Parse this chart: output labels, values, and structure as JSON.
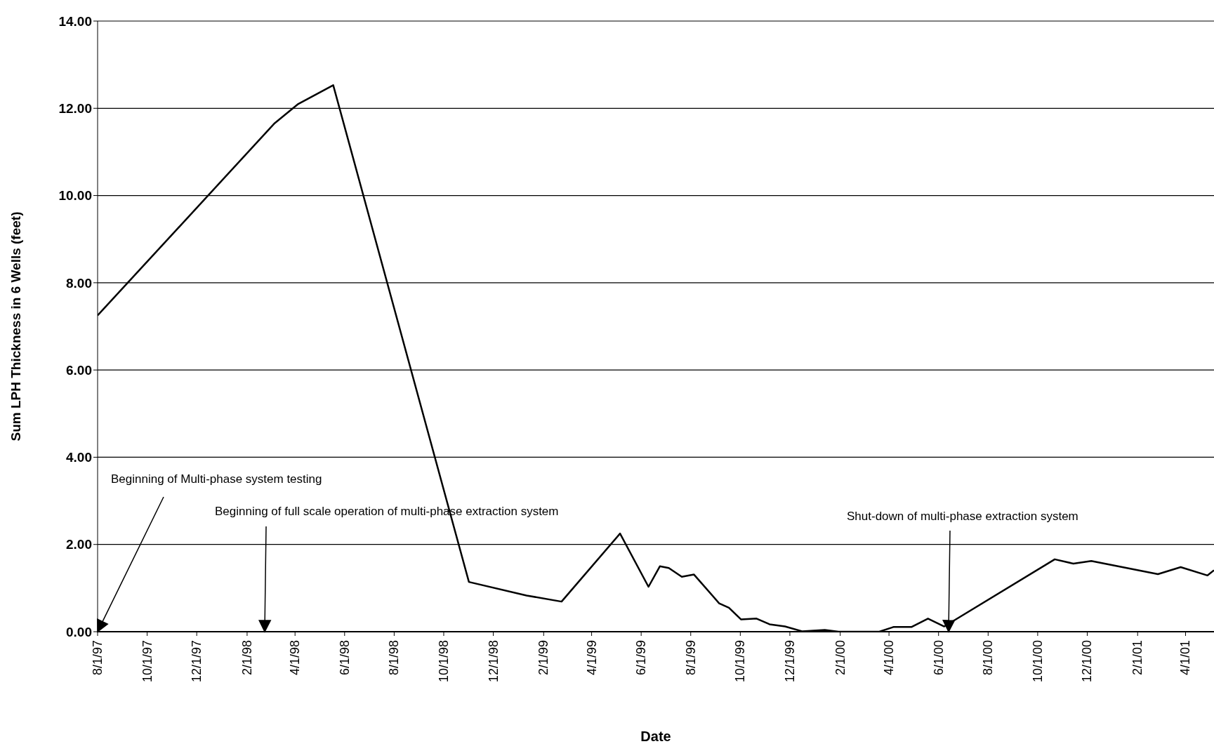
{
  "chart_data": {
    "type": "line",
    "xlabel": "Date",
    "ylabel": "Sum LPH Thickness in 6 Wells (feet)",
    "x": [
      "1997-08-01",
      "1998-03-07",
      "1998-04-05",
      "1998-05-18",
      "1998-11-01",
      "1999-01-11",
      "1999-02-23",
      "1999-05-06",
      "1999-06-10",
      "1999-06-24",
      "1999-07-05",
      "1999-07-21",
      "1999-08-05",
      "1999-09-05",
      "1999-09-17",
      "1999-10-02",
      "1999-10-21",
      "1999-11-06",
      "1999-11-25",
      "1999-12-16",
      "2000-01-13",
      "2000-01-30",
      "2000-03-20",
      "2000-04-07",
      "2000-04-29",
      "2000-05-19",
      "2000-06-08",
      "2000-10-22",
      "2000-11-14",
      "2000-12-06",
      "2001-02-26",
      "2001-03-26",
      "2001-04-28",
      "2001-05-06"
    ],
    "series": [
      {
        "color": "#000000",
        "values": [
          7.25,
          11.66,
          12.1,
          12.53,
          1.14,
          0.83,
          0.69,
          2.25,
          1.03,
          1.5,
          1.46,
          1.26,
          1.31,
          0.65,
          0.55,
          0.28,
          0.3,
          0.17,
          0.12,
          0.01,
          0.04,
          0,
          0,
          0.11,
          0.11,
          0.3,
          0.12,
          1.66,
          1.56,
          1.62,
          1.32,
          1.48,
          1.29,
          1.41
        ]
      }
    ],
    "xlim": [
      "1997-08-01",
      "2001-05-06"
    ],
    "xticks": [
      {
        "value": "1997-08-01",
        "label": "8/1/97"
      },
      {
        "value": "1997-10-01",
        "label": "10/1/97"
      },
      {
        "value": "1997-12-01",
        "label": "12/1/97"
      },
      {
        "value": "1998-02-01",
        "label": "2/1/98"
      },
      {
        "value": "1998-04-01",
        "label": "4/1/98"
      },
      {
        "value": "1998-06-01",
        "label": "6/1/98"
      },
      {
        "value": "1998-08-01",
        "label": "8/1/98"
      },
      {
        "value": "1998-10-01",
        "label": "10/1/98"
      },
      {
        "value": "1998-12-01",
        "label": "12/1/98"
      },
      {
        "value": "1999-02-01",
        "label": "2/1/99"
      },
      {
        "value": "1999-04-01",
        "label": "4/1/99"
      },
      {
        "value": "1999-06-01",
        "label": "6/1/99"
      },
      {
        "value": "1999-08-01",
        "label": "8/1/99"
      },
      {
        "value": "1999-10-01",
        "label": "10/1/99"
      },
      {
        "value": "1999-12-01",
        "label": "12/1/99"
      },
      {
        "value": "2000-02-01",
        "label": "2/1/00"
      },
      {
        "value": "2000-04-01",
        "label": "4/1/00"
      },
      {
        "value": "2000-06-01",
        "label": "6/1/00"
      },
      {
        "value": "2000-08-01",
        "label": "8/1/00"
      },
      {
        "value": "2000-10-01",
        "label": "10/1/00"
      },
      {
        "value": "2000-12-01",
        "label": "12/1/00"
      },
      {
        "value": "2001-02-01",
        "label": "2/1/01"
      },
      {
        "value": "2001-04-01",
        "label": "4/1/01"
      }
    ],
    "ylim": [
      0,
      14
    ],
    "yticks": [
      {
        "value": 0,
        "label": "0.00"
      },
      {
        "value": 2,
        "label": "2.00"
      },
      {
        "value": 4,
        "label": "4.00"
      },
      {
        "value": 6,
        "label": "6.00"
      },
      {
        "value": 8,
        "label": "8.00"
      },
      {
        "value": 10,
        "label": "10.00"
      },
      {
        "value": 12,
        "label": "12.00"
      },
      {
        "value": 14,
        "label": "14.00"
      }
    ],
    "grid": "y",
    "legend": false,
    "marker": "none",
    "line_style": "solid",
    "annotations": [
      "Beginning of Multi-phase system testing",
      "Beginning of full scale operation of multi-phase extraction system",
      "Shut-down of multi-phase extraction system"
    ]
  }
}
